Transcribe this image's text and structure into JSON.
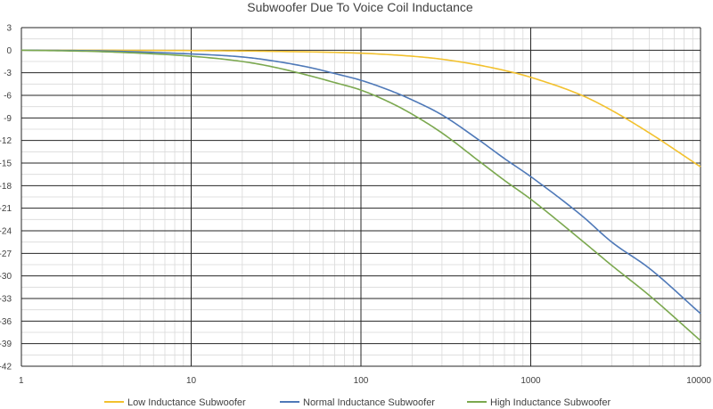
{
  "chart_data": {
    "type": "line",
    "title": "Subwoofer Due To Voice Coil Inductance",
    "xscale": "log",
    "xlim": [
      1,
      10000
    ],
    "ylim": [
      -42,
      3
    ],
    "x_ticks": [
      "1",
      "10",
      "100",
      "1000",
      "10000"
    ],
    "y_ticks": [
      "3",
      "0",
      "-3",
      "-6",
      "-9",
      "-12",
      "-15",
      "-18",
      "-21",
      "-24",
      "-27",
      "-30",
      "-33",
      "-36",
      "-39",
      "-42"
    ],
    "legend_position": "bottom",
    "series": [
      {
        "name": "Low Inductance Subwoofer",
        "color": "#f2c12e",
        "x": [
          1,
          10,
          30,
          100,
          200,
          300,
          500,
          800,
          1000,
          2000,
          3000,
          5000,
          10000
        ],
        "y": [
          0,
          -0.05,
          -0.15,
          -0.4,
          -0.8,
          -1.2,
          -2.0,
          -3.0,
          -3.6,
          -6.0,
          -8.0,
          -11.0,
          -15.5
        ]
      },
      {
        "name": "Normal Inductance Subwoofer",
        "color": "#4f79b8",
        "x": [
          1,
          3,
          10,
          20,
          30,
          50,
          70,
          100,
          150,
          200,
          300,
          500,
          700,
          1000,
          2000,
          3000,
          5000,
          10000
        ],
        "y": [
          0,
          -0.1,
          -0.5,
          -0.9,
          -1.4,
          -2.3,
          -3.1,
          -4.0,
          -5.4,
          -6.6,
          -8.6,
          -12.0,
          -14.4,
          -16.8,
          -22.0,
          -25.5,
          -29.0,
          -35.0
        ]
      },
      {
        "name": "High Inductance Subwoofer",
        "color": "#7ba84f",
        "x": [
          1,
          3,
          10,
          20,
          30,
          50,
          70,
          100,
          150,
          200,
          300,
          500,
          700,
          1000,
          2000,
          3000,
          5000,
          10000
        ],
        "y": [
          0,
          -0.2,
          -0.8,
          -1.5,
          -2.2,
          -3.4,
          -4.3,
          -5.3,
          -7.0,
          -8.5,
          -11.0,
          -14.8,
          -17.3,
          -19.8,
          -25.3,
          -28.6,
          -32.6,
          -38.6
        ]
      }
    ]
  }
}
